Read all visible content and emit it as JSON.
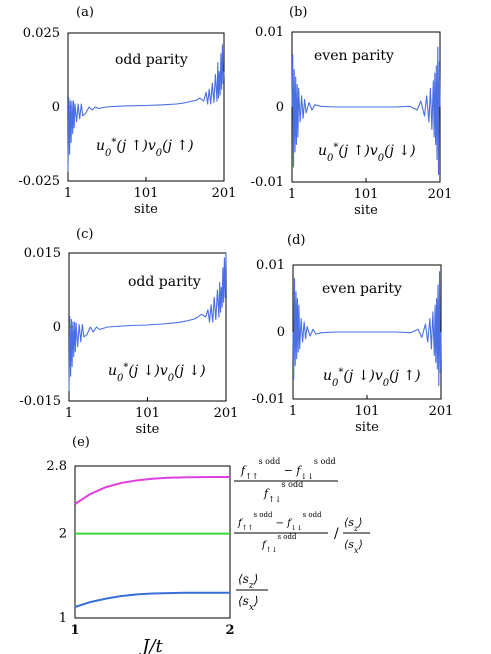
{
  "figure": {
    "panel_labels": [
      "(a)",
      "(b)",
      "(c)",
      "(d)",
      "(e)"
    ]
  },
  "chart_data": [
    {
      "type": "line",
      "panel": "(a)",
      "title": "odd parity",
      "annotation": "u*0(j↑)v0(j↑)",
      "xlabel": "site",
      "x_ticks": [
        "1",
        "101",
        "201"
      ],
      "y_ticks": [
        "0.025",
        "0",
        "-0.025"
      ],
      "xlim": [
        1,
        201
      ],
      "ylim": [
        -0.025,
        0.025
      ],
      "color": "#4a6fe3",
      "series": [
        {
          "x": [
            1,
            2,
            3,
            4,
            5,
            6,
            7,
            8,
            9,
            10,
            12,
            14,
            16,
            18,
            20,
            24,
            28,
            32,
            36,
            40,
            50,
            60,
            80,
            100,
            120,
            140,
            150,
            160,
            165,
            170,
            175,
            178,
            180,
            182,
            184,
            186,
            188,
            190,
            192,
            193,
            194,
            195,
            196,
            197,
            198,
            199,
            200,
            201
          ],
          "y": [
            -0.022,
            0.003,
            -0.016,
            0.002,
            -0.012,
            0.002,
            -0.009,
            0.002,
            -0.007,
            0.001,
            -0.005,
            0.001,
            -0.004,
            0.001,
            -0.003,
            -0.002,
            0.0,
            -0.001,
            0.0,
            -0.0005,
            0.0,
            0.0002,
            0.0004,
            0.0005,
            0.0007,
            0.001,
            0.0014,
            0.002,
            0.0022,
            0.003,
            0.002,
            0.005,
            0.001,
            0.006,
            0.001,
            0.008,
            0.0015,
            0.011,
            0.002,
            0.015,
            0.003,
            0.012,
            0.004,
            0.018,
            0.006,
            0.021,
            0.008,
            0.012
          ]
        }
      ]
    },
    {
      "type": "line",
      "panel": "(b)",
      "title": "even parity",
      "annotation": "u*0(j↑)v0(j↓)",
      "xlabel": "site",
      "x_ticks": [
        "1",
        "101",
        "201"
      ],
      "y_ticks": [
        "0.01",
        "0",
        "-0.01"
      ],
      "xlim": [
        1,
        201
      ],
      "ylim": [
        -0.01,
        0.01
      ],
      "color": "#4a6fe3",
      "series": [
        {
          "x": [
            1,
            2,
            3,
            4,
            5,
            6,
            7,
            8,
            9,
            10,
            12,
            14,
            16,
            18,
            20,
            24,
            28,
            32,
            40,
            60,
            80,
            100,
            120,
            140,
            160,
            170,
            175,
            180,
            183,
            186,
            188,
            190,
            192,
            193,
            194,
            195,
            196,
            197,
            198,
            199,
            200,
            201
          ],
          "y": [
            0.0,
            0.007,
            -0.008,
            0.005,
            -0.006,
            0.004,
            -0.005,
            0.003,
            -0.004,
            0.0025,
            -0.002,
            0.0015,
            -0.0015,
            0.001,
            -0.0008,
            0.0006,
            -0.0004,
            0.0003,
            0.0001,
            0.0,
            0.0,
            0.0,
            0.0,
            0.0,
            0.0001,
            -0.0004,
            0.0008,
            -0.0012,
            0.0015,
            -0.002,
            0.0025,
            -0.003,
            0.0035,
            -0.004,
            0.0045,
            -0.005,
            0.0055,
            -0.007,
            0.008,
            -0.009,
            0.006,
            0.0
          ]
        }
      ]
    },
    {
      "type": "line",
      "panel": "(c)",
      "title": "odd parity",
      "annotation": "u*0(j↓)v0(j↓)",
      "xlabel": "site",
      "x_ticks": [
        "1",
        "101",
        "201"
      ],
      "y_ticks": [
        "0.015",
        "0",
        "-0.015"
      ],
      "xlim": [
        1,
        201
      ],
      "ylim": [
        -0.015,
        0.015
      ],
      "color": "#4a6fe3",
      "series": [
        {
          "x": [
            1,
            2,
            3,
            4,
            5,
            6,
            7,
            8,
            9,
            10,
            12,
            14,
            16,
            18,
            20,
            24,
            28,
            32,
            36,
            40,
            50,
            60,
            80,
            100,
            120,
            140,
            150,
            160,
            165,
            170,
            175,
            178,
            180,
            182,
            184,
            186,
            188,
            190,
            192,
            193,
            194,
            195,
            196,
            197,
            198,
            199,
            200,
            201
          ],
          "y": [
            -0.013,
            0.002,
            -0.01,
            0.0015,
            -0.008,
            0.001,
            -0.006,
            0.001,
            -0.005,
            0.0008,
            -0.004,
            0.0005,
            -0.003,
            0.0005,
            -0.002,
            -0.0015,
            0.0,
            -0.001,
            0.0,
            -0.0005,
            0.0,
            0.0001,
            0.0003,
            0.0004,
            0.0006,
            0.0009,
            0.0012,
            0.0016,
            0.002,
            0.0026,
            0.002,
            0.0035,
            0.001,
            0.0045,
            0.001,
            0.006,
            0.0015,
            0.0075,
            0.002,
            0.009,
            0.003,
            0.008,
            0.004,
            0.012,
            0.005,
            0.014,
            0.006,
            0.015
          ]
        }
      ]
    },
    {
      "type": "line",
      "panel": "(d)",
      "title": "even parity",
      "annotation": "u*0(j↓)v0(j↑)",
      "xlabel": "site",
      "x_ticks": [
        "1",
        "101",
        "201"
      ],
      "y_ticks": [
        "0.01",
        "0",
        "-0.01"
      ],
      "xlim": [
        1,
        201
      ],
      "ylim": [
        -0.01,
        0.01
      ],
      "color": "#4a6fe3",
      "series": [
        {
          "x": [
            1,
            2,
            3,
            4,
            5,
            6,
            7,
            8,
            9,
            10,
            12,
            14,
            16,
            18,
            20,
            24,
            28,
            32,
            40,
            60,
            80,
            100,
            120,
            140,
            160,
            170,
            175,
            180,
            183,
            186,
            188,
            190,
            192,
            193,
            194,
            195,
            196,
            197,
            198,
            199,
            200,
            201
          ],
          "y": [
            0.0,
            -0.007,
            0.008,
            -0.005,
            0.006,
            -0.004,
            0.005,
            -0.003,
            0.004,
            -0.0025,
            0.002,
            -0.0015,
            0.0015,
            -0.001,
            0.0008,
            -0.0006,
            0.0004,
            -0.0003,
            -0.0001,
            0.0,
            0.0,
            0.0,
            0.0,
            0.0,
            -0.0001,
            0.0004,
            -0.0008,
            0.0012,
            -0.0015,
            0.002,
            -0.0025,
            0.003,
            -0.0035,
            0.004,
            -0.0045,
            0.005,
            -0.0055,
            0.007,
            -0.008,
            0.009,
            -0.006,
            0.0
          ]
        }
      ]
    },
    {
      "type": "line",
      "panel": "(e)",
      "xlabel": "J/t",
      "x_ticks": [
        "1",
        "2"
      ],
      "y_ticks": [
        "2.8",
        "2",
        "1"
      ],
      "xlim": [
        1,
        2
      ],
      "ylim": [
        1,
        2.8
      ],
      "series": [
        {
          "name": "f↑↑(s odd) − f↓↓(s odd) / f↑↓(s odd)",
          "color": "#e040e0",
          "x": [
            1.0,
            1.1,
            1.2,
            1.3,
            1.4,
            1.5,
            1.6,
            1.7,
            1.8,
            1.9,
            2.0
          ],
          "y": [
            2.35,
            2.47,
            2.55,
            2.6,
            2.63,
            2.65,
            2.66,
            2.665,
            2.668,
            2.67,
            2.67
          ]
        },
        {
          "name": "f↑↑(s odd) − f↓↓(s odd) / f↑↓(s odd)  /  ⟨s_z⟩/⟨s_x⟩",
          "color": "#3cd63c",
          "x": [
            1.0,
            2.0
          ],
          "y": [
            2.0,
            2.0
          ]
        },
        {
          "name": "⟨s_z⟩/⟨s_x⟩",
          "color": "#3a6fd8",
          "x": [
            1.0,
            1.1,
            1.2,
            1.3,
            1.4,
            1.5,
            1.6,
            1.7,
            1.8,
            1.9,
            2.0
          ],
          "y": [
            1.13,
            1.19,
            1.23,
            1.26,
            1.28,
            1.29,
            1.295,
            1.3,
            1.3,
            1.3,
            1.3
          ]
        }
      ]
    }
  ]
}
